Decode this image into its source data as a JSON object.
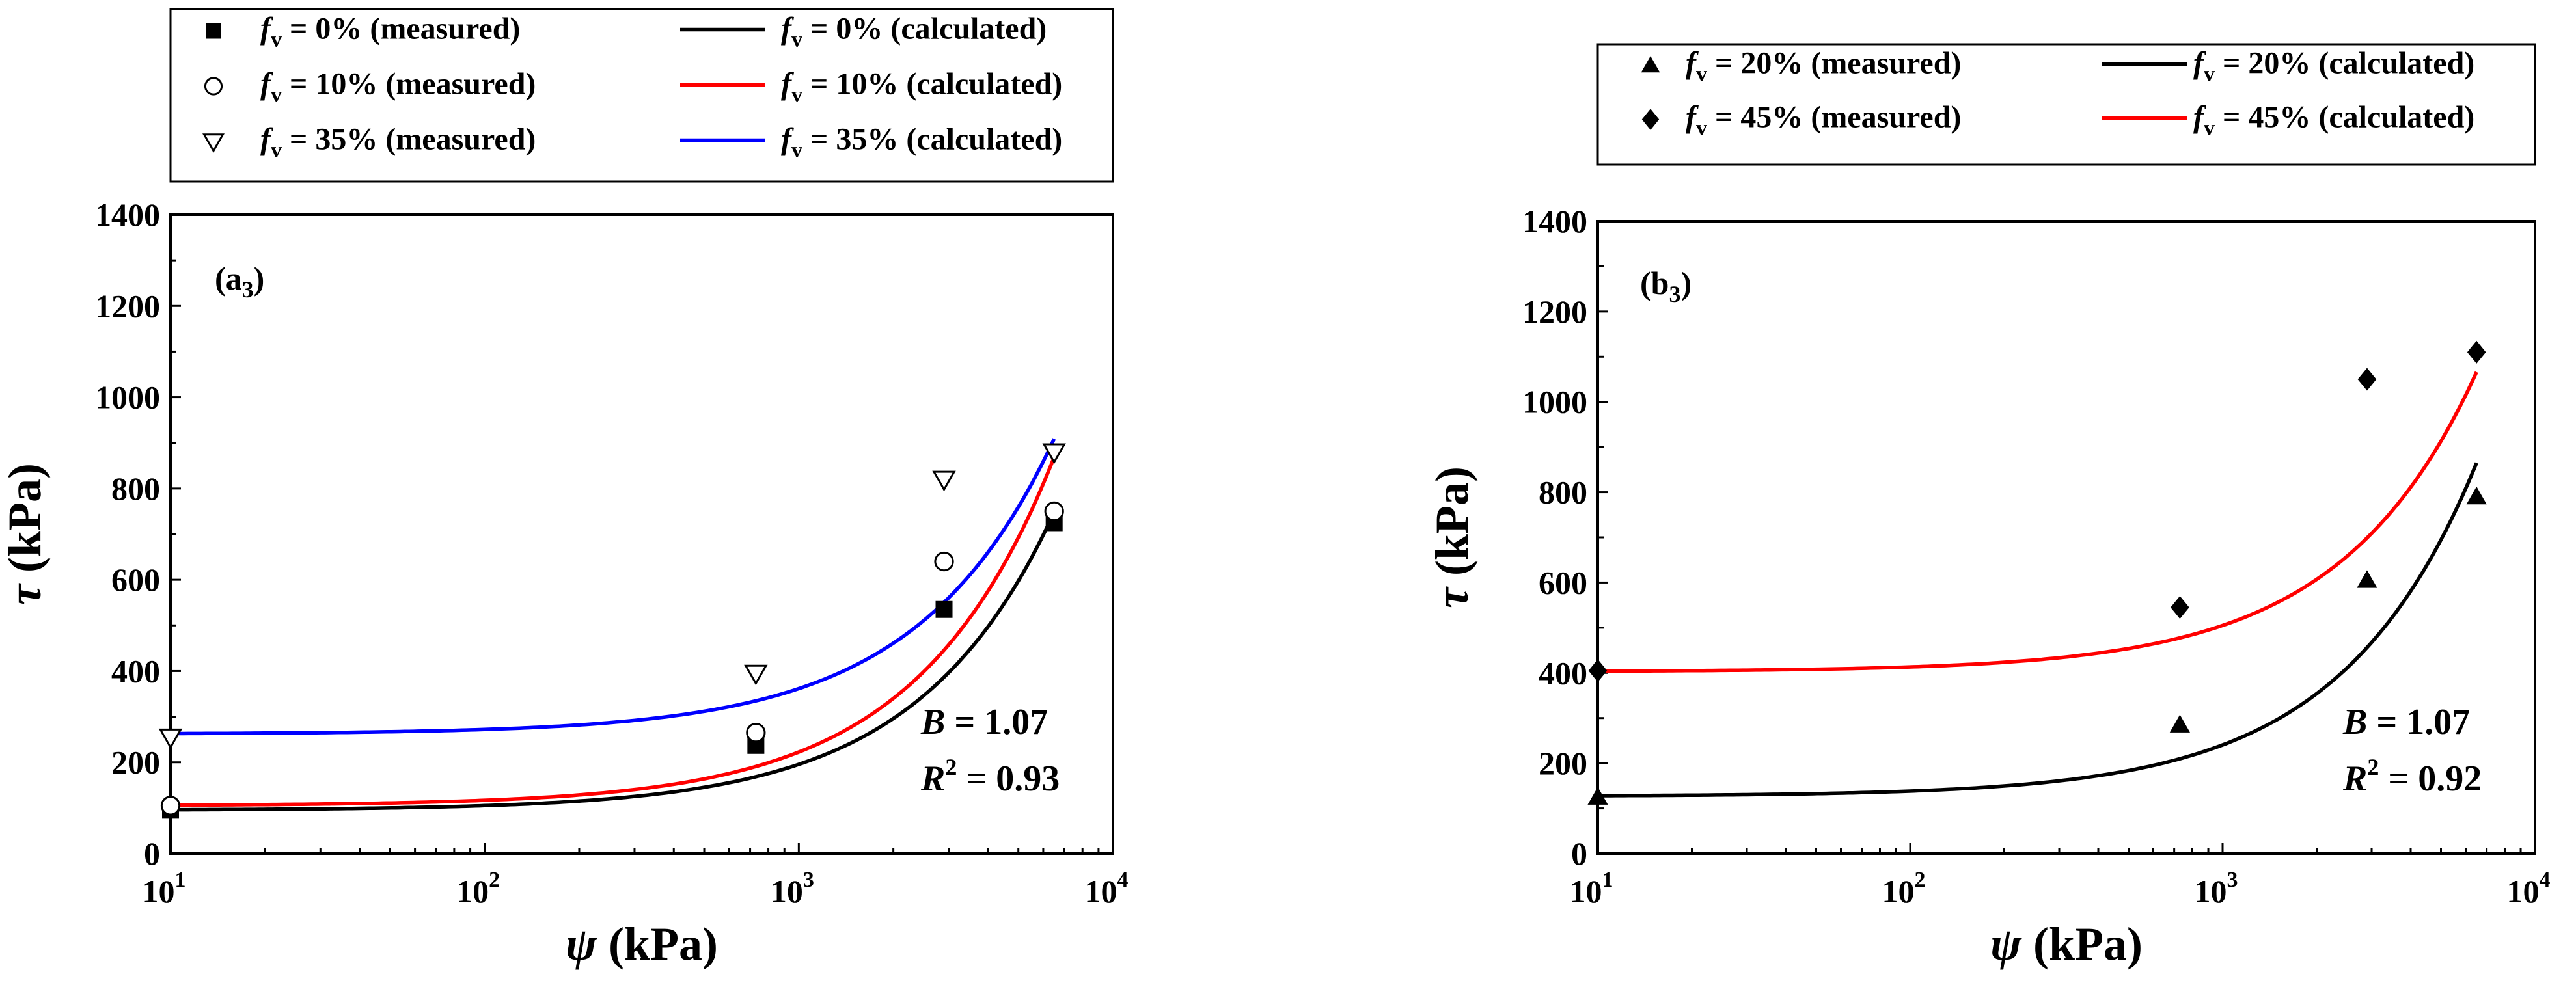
{
  "chart_data": [
    {
      "type": "scatter",
      "panel_label": "(a",
      "panel_sub": "3",
      "panel_close": ")",
      "xlabel_sym": "ψ",
      "xlabel": "(kPa)",
      "ylabel_sym": "τ",
      "ylabel": "(kPa)",
      "xscale": "log",
      "xlim": [
        10,
        10000
      ],
      "ylim": [
        0,
        1400
      ],
      "yticks": [
        "0",
        "200",
        "400",
        "600",
        "800",
        "1000",
        "1200",
        "1400"
      ],
      "xticks": [
        {
          "base": "10",
          "exp": "1"
        },
        {
          "base": "10",
          "exp": "2"
        },
        {
          "base": "10",
          "exp": "3"
        },
        {
          "base": "10",
          "exp": "4"
        }
      ],
      "annotation": {
        "B_sym": "B",
        "B_value": " = 1.07",
        "R_sym": "R",
        "R_exp": "2",
        "R_value": " = 0.93"
      },
      "legend": [
        {
          "label_sym": "f",
          "label_sub": "v",
          "label_rest": " = 0% (measured)",
          "marker": "square-filled"
        },
        {
          "label_sym": "f",
          "label_sub": "v",
          "label_rest": " = 0% (calculated)",
          "line_color": "#000000"
        },
        {
          "label_sym": "f",
          "label_sub": "v",
          "label_rest": " = 10% (measured)",
          "marker": "circle-open"
        },
        {
          "label_sym": "f",
          "label_sub": "v",
          "label_rest": " = 10% (calculated)",
          "line_color": "#ff0000"
        },
        {
          "label_sym": "f",
          "label_sub": "v",
          "label_rest": " = 35% (measured)",
          "marker": "triangle-down-open"
        },
        {
          "label_sym": "f",
          "label_sub": "v",
          "label_rest": " = 35% (calculated)",
          "line_color": "#0000ff"
        }
      ],
      "series": [
        {
          "name": "fv = 0% (measured)",
          "kind": "points",
          "marker": "square-filled",
          "color": "#000000",
          "x": [
            10,
            730,
            2900,
            6500
          ],
          "y": [
            95,
            237,
            535,
            725
          ]
        },
        {
          "name": "fv = 10% (measured)",
          "kind": "points",
          "marker": "circle-open",
          "color": "#000000",
          "x": [
            10,
            730,
            2900,
            6500
          ],
          "y": [
            105,
            265,
            640,
            750
          ]
        },
        {
          "name": "fv = 35% (measured)",
          "kind": "points",
          "marker": "triangle-down-open",
          "color": "#000000",
          "x": [
            10,
            730,
            2900,
            6500
          ],
          "y": [
            255,
            395,
            820,
            880
          ]
        },
        {
          "name": "fv = 0% (calculated)",
          "kind": "curve",
          "color": "#000000",
          "c": 95,
          "k": 0.1005
        },
        {
          "name": "fv = 10% (calculated)",
          "kind": "curve",
          "color": "#ff0000",
          "c": 105,
          "k": 0.1175
        },
        {
          "name": "fv = 35% (calculated)",
          "kind": "curve",
          "color": "#0000ff",
          "c": 262,
          "k": 0.0995
        }
      ]
    },
    {
      "type": "scatter",
      "panel_label": "(b",
      "panel_sub": "3",
      "panel_close": ")",
      "xlabel_sym": "ψ",
      "xlabel": "(kPa)",
      "ylabel_sym": "τ",
      "ylabel": "(kPa)",
      "xscale": "log",
      "xlim": [
        10,
        10000
      ],
      "ylim": [
        0,
        1400
      ],
      "yticks": [
        "0",
        "200",
        "400",
        "600",
        "800",
        "1000",
        "1200",
        "1400"
      ],
      "xticks": [
        {
          "base": "10",
          "exp": "1"
        },
        {
          "base": "10",
          "exp": "2"
        },
        {
          "base": "10",
          "exp": "3"
        },
        {
          "base": "10",
          "exp": "4"
        }
      ],
      "annotation": {
        "B_sym": "B",
        "B_value": " = 1.07",
        "R_sym": "R",
        "R_exp": "2",
        "R_value": " = 0.92"
      },
      "legend": [
        {
          "label_sym": "f",
          "label_sub": "v",
          "label_rest": " = 20% (measured)",
          "marker": "triangle-up-filled"
        },
        {
          "label_sym": "f",
          "label_sub": "v",
          "label_rest": " = 20% (calculated)",
          "line_color": "#000000"
        },
        {
          "label_sym": "f",
          "label_sub": "v",
          "label_rest": " = 45% (measured)",
          "marker": "diamond-filled"
        },
        {
          "label_sym": "f",
          "label_sub": "v",
          "label_rest": " = 45% (calculated)",
          "line_color": "#ff0000"
        }
      ],
      "series": [
        {
          "name": "fv = 20% (measured)",
          "kind": "points",
          "marker": "triangle-up-filled",
          "color": "#000000",
          "x": [
            10,
            730,
            2900,
            6500
          ],
          "y": [
            125,
            285,
            605,
            790
          ]
        },
        {
          "name": "fv = 45% (measured)",
          "kind": "points",
          "marker": "diamond-filled",
          "color": "#000000",
          "x": [
            10,
            730,
            2900,
            6500
          ],
          "y": [
            405,
            545,
            1050,
            1110
          ]
        },
        {
          "name": "fv = 20% (calculated)",
          "kind": "curve",
          "color": "#000000",
          "c": 127,
          "k": 0.1135
        },
        {
          "name": "fv = 45% (calculated)",
          "kind": "curve",
          "color": "#ff0000",
          "c": 403,
          "k": 0.102
        }
      ]
    }
  ]
}
